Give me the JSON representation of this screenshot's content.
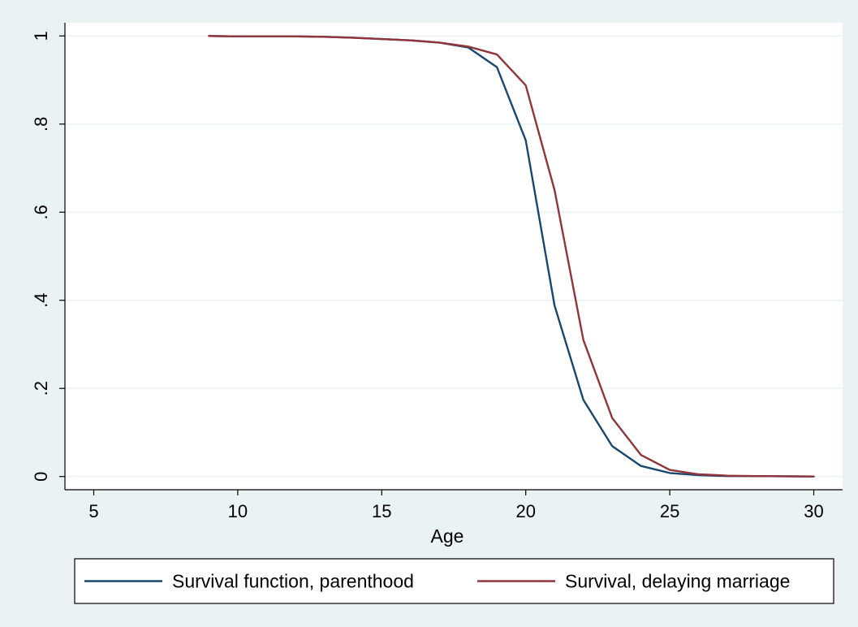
{
  "colors": {
    "outer_background": "#eaf2f3",
    "plot_background": "#ffffff",
    "gridline": "#eaf2f3",
    "axis": "#000000",
    "series_parenthood": "#1a476f",
    "series_marriage": "#90353b"
  },
  "chart_data": {
    "type": "line",
    "title": "",
    "xlabel": "Age",
    "ylabel": "",
    "xlim": [
      4,
      31
    ],
    "ylim": [
      -0.03,
      1.03
    ],
    "x_ticks": [
      5,
      10,
      15,
      20,
      25,
      30
    ],
    "x_tick_labels": [
      "5",
      "10",
      "15",
      "20",
      "25",
      "30"
    ],
    "y_ticks": [
      0,
      0.2,
      0.4,
      0.6,
      0.8,
      1
    ],
    "y_tick_labels": [
      "0",
      ".2",
      ".4",
      ".6",
      ".8",
      "1"
    ],
    "grid": "horizontal",
    "legend_position": "bottom",
    "series": [
      {
        "name": "Survival function, parenthood",
        "color": "#1a476f",
        "x": [
          9,
          10,
          11,
          12,
          13,
          14,
          15,
          16,
          17,
          18,
          19,
          20,
          21,
          22,
          23,
          24,
          25,
          26,
          27,
          28,
          29,
          30
        ],
        "y": [
          1.0,
          0.999,
          0.999,
          0.999,
          0.998,
          0.996,
          0.993,
          0.99,
          0.985,
          0.974,
          0.929,
          0.763,
          0.388,
          0.174,
          0.069,
          0.024,
          0.008,
          0.003,
          0.001,
          0.001,
          0.0005,
          0.0
        ]
      },
      {
        "name": "Survival, delaying marriage",
        "color": "#90353b",
        "x": [
          9,
          10,
          11,
          12,
          13,
          14,
          15,
          16,
          17,
          18,
          19,
          20,
          21,
          22,
          23,
          24,
          25,
          26,
          27,
          28,
          29,
          30
        ],
        "y": [
          1.0,
          0.999,
          0.999,
          0.999,
          0.998,
          0.996,
          0.993,
          0.99,
          0.985,
          0.976,
          0.958,
          0.888,
          0.65,
          0.31,
          0.133,
          0.049,
          0.015,
          0.005,
          0.002,
          0.001,
          0.0005,
          0.0
        ]
      }
    ]
  }
}
